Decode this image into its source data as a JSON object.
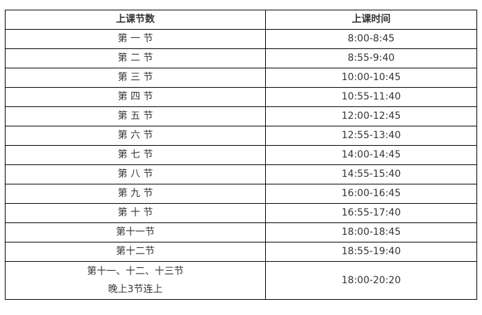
{
  "table": {
    "headers": [
      "上课节数",
      "上课时间"
    ],
    "rows": [
      {
        "period": "第 一 节",
        "time": "8:00-8:45"
      },
      {
        "period": "第 二 节",
        "time": "8:55-9:40"
      },
      {
        "period": "第 三 节",
        "time": "10:00-10:45"
      },
      {
        "period": "第 四 节",
        "time": "10:55-11:40"
      },
      {
        "period": "第 五 节",
        "time": "12:00-12:45"
      },
      {
        "period": "第 六 节",
        "time": "12:55-13:40"
      },
      {
        "period": "第 七 节",
        "time": "14:00-14:45"
      },
      {
        "period": "第 八 节",
        "time": "14:55-15:40"
      },
      {
        "period": "第 九 节",
        "time": "16:00-16:45"
      },
      {
        "period": "第 十 节",
        "time": "16:55-17:40"
      },
      {
        "period": "第十一节",
        "time": "18:00-18:45"
      },
      {
        "period": "第十二节",
        "time": "18:55-19:40"
      }
    ],
    "last_row": {
      "period_line1": "第十一、十二、十三节",
      "period_line2": "晚上3节连上",
      "time": "18:00-20:20"
    }
  }
}
